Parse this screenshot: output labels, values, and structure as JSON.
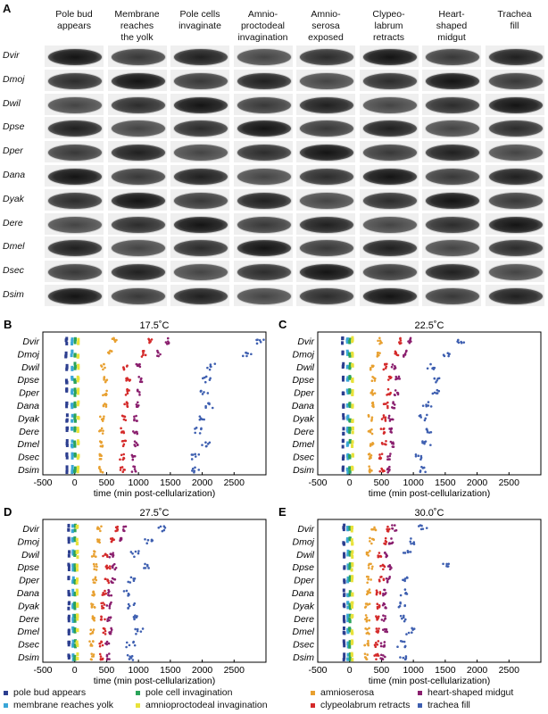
{
  "figure": {
    "panel_a_letter": "A",
    "stages": [
      "Pole bud\nappears",
      "Membrane\nreaches\nthe yolk",
      "Pole cells\ninvaginate",
      "Amnio-\nproctodeal\ninvagination",
      "Amnio-\nserosa\nexposed",
      "Clypeo-\nlabrum\nretracts",
      "Heart-\nshaped\nmidgut",
      "Trachea\nfill"
    ],
    "species": [
      "Dvir",
      "Dmoj",
      "Dwil",
      "Dpse",
      "Dper",
      "Dana",
      "Dyak",
      "Dere",
      "Dmel",
      "Dsec",
      "Dsim"
    ],
    "legend": [
      {
        "label": "pole bud appears",
        "color": "#2c3e8f"
      },
      {
        "label": "membrane reaches yolk",
        "color": "#3aa6d8"
      },
      {
        "label": "pole cell invagination",
        "color": "#2aa35a"
      },
      {
        "label": "amnioproctodeal invagination",
        "color": "#e8e23a"
      },
      {
        "label": "amnioserosa",
        "color": "#e8a030"
      },
      {
        "label": "clypeolabrum retracts",
        "color": "#d42a2a"
      },
      {
        "label": "heart-shaped midgut",
        "color": "#8a1f6e"
      },
      {
        "label": "trachea fill",
        "color": "#3e5fb0"
      }
    ]
  },
  "chart_data": [
    {
      "type": "scatter",
      "panel": "B",
      "title": "17.5˚C",
      "xlabel": "time (min post-cellularization)",
      "xlim": [
        -500,
        3000
      ],
      "xticks": [
        -500,
        0,
        500,
        1000,
        1500,
        2000,
        2500
      ],
      "categories": [
        "Dvir",
        "Dmoj",
        "Dwil",
        "Dpse",
        "Dper",
        "Dana",
        "Dyak",
        "Dere",
        "Dmel",
        "Dsec",
        "Dsim"
      ],
      "stage_times": [
        [
          -130,
          -40,
          10,
          60,
          620,
          1180,
          1450,
          2900
        ],
        [
          -135,
          -45,
          5,
          55,
          560,
          1080,
          1330,
          2700
        ],
        [
          -125,
          -40,
          5,
          55,
          450,
          790,
          1000,
          2150
        ],
        [
          -125,
          -40,
          5,
          55,
          480,
          840,
          1040,
          2080
        ],
        [
          -125,
          -40,
          5,
          55,
          470,
          820,
          1020,
          2040
        ],
        [
          -125,
          -40,
          5,
          55,
          460,
          800,
          1000,
          2100
        ],
        [
          -120,
          -40,
          5,
          55,
          430,
          770,
          950,
          1960
        ],
        [
          -120,
          -40,
          5,
          55,
          420,
          760,
          950,
          1950
        ],
        [
          -120,
          -40,
          5,
          55,
          430,
          770,
          970,
          2050
        ],
        [
          -120,
          -40,
          5,
          55,
          400,
          740,
          930,
          1880
        ],
        [
          -120,
          -40,
          5,
          55,
          410,
          750,
          930,
          1900
        ]
      ]
    },
    {
      "type": "scatter",
      "panel": "C",
      "title": "22.5˚C",
      "xlabel": "time (min post-cellularization)",
      "xlim": [
        -500,
        3000
      ],
      "xticks": [
        -500,
        0,
        500,
        1000,
        1500,
        2000,
        2500
      ],
      "categories": [
        "Dvir",
        "Dmoj",
        "Dwil",
        "Dpse",
        "Dper",
        "Dana",
        "Dyak",
        "Dere",
        "Dmel",
        "Dsec",
        "Dsim"
      ],
      "stage_times": [
        [
          -110,
          -35,
          5,
          45,
          480,
          800,
          950,
          1750
        ],
        [
          -110,
          -35,
          5,
          45,
          450,
          740,
          880,
          1520
        ],
        [
          -100,
          -30,
          5,
          45,
          340,
          560,
          690,
          1280
        ],
        [
          -100,
          -30,
          5,
          45,
          380,
          620,
          750,
          1370
        ],
        [
          -100,
          -30,
          5,
          45,
          370,
          610,
          740,
          1340
        ],
        [
          -100,
          -30,
          5,
          45,
          350,
          570,
          700,
          1220
        ],
        [
          -100,
          -30,
          5,
          45,
          330,
          530,
          650,
          1150
        ],
        [
          -100,
          -30,
          5,
          45,
          330,
          520,
          650,
          1250
        ],
        [
          -100,
          -30,
          5,
          45,
          340,
          540,
          670,
          1200
        ],
        [
          -100,
          -30,
          5,
          45,
          310,
          500,
          620,
          1100
        ],
        [
          -100,
          -30,
          5,
          45,
          320,
          510,
          620,
          1130
        ]
      ]
    },
    {
      "type": "scatter",
      "panel": "D",
      "title": "27.5˚C",
      "xlabel": "time (min post-cellularization)",
      "xlim": [
        -500,
        3000
      ],
      "xticks": [
        -500,
        0,
        500,
        1000,
        1500,
        2000,
        2500
      ],
      "categories": [
        "Dvir",
        "Dmoj",
        "Dwil",
        "Dpse",
        "Dper",
        "Dana",
        "Dyak",
        "Dere",
        "Dmel",
        "Dsec",
        "Dsim"
      ],
      "stage_times": [
        [
          -95,
          -30,
          5,
          40,
          390,
          650,
          780,
          1380
        ],
        [
          -95,
          -30,
          5,
          40,
          360,
          590,
          700,
          1150
        ],
        [
          -90,
          -25,
          5,
          40,
          300,
          480,
          580,
          950
        ],
        [
          -90,
          -25,
          5,
          40,
          320,
          520,
          620,
          1150
        ],
        [
          -90,
          -25,
          5,
          40,
          310,
          500,
          600,
          900
        ],
        [
          -90,
          -25,
          5,
          40,
          290,
          460,
          560,
          830
        ],
        [
          -90,
          -25,
          5,
          40,
          280,
          450,
          540,
          900
        ],
        [
          -90,
          -25,
          5,
          40,
          280,
          440,
          540,
          950
        ],
        [
          -90,
          -25,
          5,
          40,
          280,
          460,
          560,
          1000
        ],
        [
          -90,
          -25,
          5,
          40,
          260,
          420,
          520,
          880
        ],
        [
          -90,
          -25,
          5,
          40,
          270,
          430,
          520,
          900
        ]
      ]
    },
    {
      "type": "scatter",
      "panel": "E",
      "title": "30.0˚C",
      "xlabel": "time (min post-cellularization)",
      "xlim": [
        -500,
        3000
      ],
      "xticks": [
        -500,
        0,
        500,
        1000,
        1500,
        2000,
        2500
      ],
      "categories": [
        "Dvir",
        "Dmoj",
        "Dwil",
        "Dpse",
        "Dper",
        "Dana",
        "Dyak",
        "Dere",
        "Dmel",
        "Dsec",
        "Dsim"
      ],
      "stage_times": [
        [
          -90,
          -30,
          5,
          40,
          380,
          620,
          700,
          1150
        ],
        [
          -90,
          -30,
          5,
          40,
          350,
          560,
          650,
          1000
        ],
        [
          -85,
          -25,
          5,
          40,
          300,
          470,
          560,
          900
        ],
        [
          -85,
          -25,
          5,
          40,
          330,
          520,
          620,
          1500
        ],
        [
          -85,
          -25,
          5,
          40,
          300,
          500,
          600,
          850
        ],
        [
          -85,
          -25,
          5,
          40,
          290,
          450,
          550,
          850
        ],
        [
          -85,
          -25,
          5,
          40,
          280,
          440,
          540,
          820
        ],
        [
          -85,
          -25,
          5,
          40,
          280,
          440,
          540,
          850
        ],
        [
          -85,
          -25,
          5,
          40,
          280,
          450,
          560,
          950
        ],
        [
          -85,
          -25,
          5,
          40,
          260,
          420,
          520,
          820
        ],
        [
          -85,
          -25,
          5,
          40,
          260,
          420,
          520,
          850
        ]
      ]
    }
  ]
}
